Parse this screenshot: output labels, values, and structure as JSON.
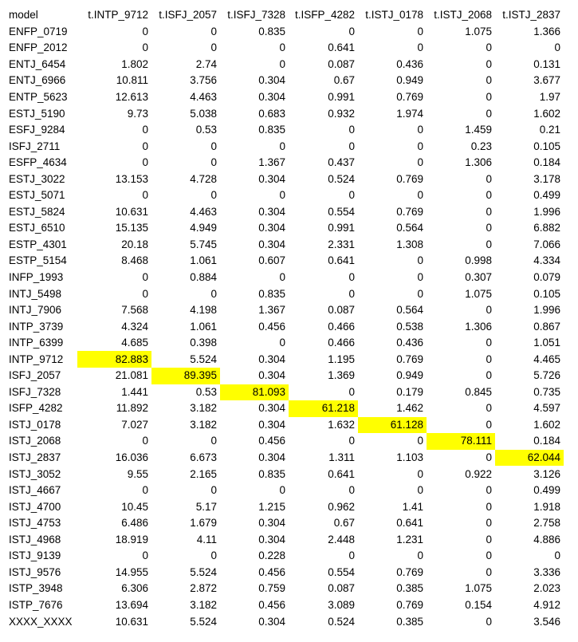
{
  "table": {
    "columns": [
      "model",
      "t.INTP_9712",
      "t.ISFJ_2057",
      "t.ISFJ_7328",
      "t.ISFP_4282",
      "t.ISTJ_0178",
      "t.ISTJ_2068",
      "t.ISTJ_2837"
    ],
    "highlight_color": "#ffff00",
    "rows": [
      {
        "model": "ENFP_0719",
        "values": [
          "0",
          "0",
          "0.835",
          "0",
          "0",
          "1.075",
          "1.366"
        ],
        "highlight": -1
      },
      {
        "model": "ENFP_2012",
        "values": [
          "0",
          "0",
          "0",
          "0.641",
          "0",
          "0",
          "0"
        ],
        "highlight": -1
      },
      {
        "model": "ENTJ_6454",
        "values": [
          "1.802",
          "2.74",
          "0",
          "0.087",
          "0.436",
          "0",
          "0.131"
        ],
        "highlight": -1
      },
      {
        "model": "ENTJ_6966",
        "values": [
          "10.811",
          "3.756",
          "0.304",
          "0.67",
          "0.949",
          "0",
          "3.677"
        ],
        "highlight": -1
      },
      {
        "model": "ENTP_5623",
        "values": [
          "12.613",
          "4.463",
          "0.304",
          "0.991",
          "0.769",
          "0",
          "1.97"
        ],
        "highlight": -1
      },
      {
        "model": "ESTJ_5190",
        "values": [
          "9.73",
          "5.038",
          "0.683",
          "0.932",
          "1.974",
          "0",
          "1.602"
        ],
        "highlight": -1
      },
      {
        "model": "ESFJ_9284",
        "values": [
          "0",
          "0.53",
          "0.835",
          "0",
          "0",
          "1.459",
          "0.21"
        ],
        "highlight": -1
      },
      {
        "model": "ISFJ_2711",
        "values": [
          "0",
          "0",
          "0",
          "0",
          "0",
          "0.23",
          "0.105"
        ],
        "highlight": -1
      },
      {
        "model": "ESFP_4634",
        "values": [
          "0",
          "0",
          "1.367",
          "0.437",
          "0",
          "1.306",
          "0.184"
        ],
        "highlight": -1
      },
      {
        "model": "ESTJ_3022",
        "values": [
          "13.153",
          "4.728",
          "0.304",
          "0.524",
          "0.769",
          "0",
          "3.178"
        ],
        "highlight": -1
      },
      {
        "model": "ESTJ_5071",
        "values": [
          "0",
          "0",
          "0",
          "0",
          "0",
          "0",
          "0.499"
        ],
        "highlight": -1
      },
      {
        "model": "ESTJ_5824",
        "values": [
          "10.631",
          "4.463",
          "0.304",
          "0.554",
          "0.769",
          "0",
          "1.996"
        ],
        "highlight": -1
      },
      {
        "model": "ESTJ_6510",
        "values": [
          "15.135",
          "4.949",
          "0.304",
          "0.991",
          "0.564",
          "0",
          "6.882"
        ],
        "highlight": -1
      },
      {
        "model": "ESTP_4301",
        "values": [
          "20.18",
          "5.745",
          "0.304",
          "2.331",
          "1.308",
          "0",
          "7.066"
        ],
        "highlight": -1
      },
      {
        "model": "ESTP_5154",
        "values": [
          "8.468",
          "1.061",
          "0.607",
          "0.641",
          "0",
          "0.998",
          "4.334"
        ],
        "highlight": -1
      },
      {
        "model": "INFP_1993",
        "values": [
          "0",
          "0.884",
          "0",
          "0",
          "0",
          "0.307",
          "0.079"
        ],
        "highlight": -1
      },
      {
        "model": "INTJ_5498",
        "values": [
          "0",
          "0",
          "0.835",
          "0",
          "0",
          "1.075",
          "0.105"
        ],
        "highlight": -1
      },
      {
        "model": "INTJ_7906",
        "values": [
          "7.568",
          "4.198",
          "1.367",
          "0.087",
          "0.564",
          "0",
          "1.996"
        ],
        "highlight": -1
      },
      {
        "model": "INTP_3739",
        "values": [
          "4.324",
          "1.061",
          "0.456",
          "0.466",
          "0.538",
          "1.306",
          "0.867"
        ],
        "highlight": -1
      },
      {
        "model": "INTP_6399",
        "values": [
          "4.685",
          "0.398",
          "0",
          "0.466",
          "0.436",
          "0",
          "1.051"
        ],
        "highlight": -1
      },
      {
        "model": "INTP_9712",
        "values": [
          "82.883",
          "5.524",
          "0.304",
          "1.195",
          "0.769",
          "0",
          "4.465"
        ],
        "highlight": 0
      },
      {
        "model": "ISFJ_2057",
        "values": [
          "21.081",
          "89.395",
          "0.304",
          "1.369",
          "0.949",
          "0",
          "5.726"
        ],
        "highlight": 1
      },
      {
        "model": "ISFJ_7328",
        "values": [
          "1.441",
          "0.53",
          "81.093",
          "0",
          "0.179",
          "0.845",
          "0.735"
        ],
        "highlight": 2
      },
      {
        "model": "ISFP_4282",
        "values": [
          "11.892",
          "3.182",
          "0.304",
          "61.218",
          "1.462",
          "0",
          "4.597"
        ],
        "highlight": 3
      },
      {
        "model": "ISTJ_0178",
        "values": [
          "7.027",
          "3.182",
          "0.304",
          "1.632",
          "61.128",
          "0",
          "1.602"
        ],
        "highlight": 4
      },
      {
        "model": "ISTJ_2068",
        "values": [
          "0",
          "0",
          "0.456",
          "0",
          "0",
          "78.111",
          "0.184"
        ],
        "highlight": 5
      },
      {
        "model": "ISTJ_2837",
        "values": [
          "16.036",
          "6.673",
          "0.304",
          "1.311",
          "1.103",
          "0",
          "62.044"
        ],
        "highlight": 6
      },
      {
        "model": "ISTJ_3052",
        "values": [
          "9.55",
          "2.165",
          "0.835",
          "0.641",
          "0",
          "0.922",
          "3.126"
        ],
        "highlight": -1
      },
      {
        "model": "ISTJ_4667",
        "values": [
          "0",
          "0",
          "0",
          "0",
          "0",
          "0",
          "0.499"
        ],
        "highlight": -1
      },
      {
        "model": "ISTJ_4700",
        "values": [
          "10.45",
          "5.17",
          "1.215",
          "0.962",
          "1.41",
          "0",
          "1.918"
        ],
        "highlight": -1
      },
      {
        "model": "ISTJ_4753",
        "values": [
          "6.486",
          "1.679",
          "0.304",
          "0.67",
          "0.641",
          "0",
          "2.758"
        ],
        "highlight": -1
      },
      {
        "model": "ISTJ_4968",
        "values": [
          "18.919",
          "4.11",
          "0.304",
          "2.448",
          "1.231",
          "0",
          "4.886"
        ],
        "highlight": -1
      },
      {
        "model": "ISTJ_9139",
        "values": [
          "0",
          "0",
          "0.228",
          "0",
          "0",
          "0",
          "0"
        ],
        "highlight": -1
      },
      {
        "model": "ISTJ_9576",
        "values": [
          "14.955",
          "5.524",
          "0.456",
          "0.554",
          "0.769",
          "0",
          "3.336"
        ],
        "highlight": -1
      },
      {
        "model": "ISTP_3948",
        "values": [
          "6.306",
          "2.872",
          "0.759",
          "0.087",
          "0.385",
          "1.075",
          "2.023"
        ],
        "highlight": -1
      },
      {
        "model": "ISTP_7676",
        "values": [
          "13.694",
          "3.182",
          "0.456",
          "3.089",
          "0.769",
          "0.154",
          "4.912"
        ],
        "highlight": -1
      },
      {
        "model": "XXXX_XXXX",
        "values": [
          "10.631",
          "5.524",
          "0.304",
          "0.524",
          "0.385",
          "0",
          "3.546"
        ],
        "highlight": -1
      }
    ]
  }
}
